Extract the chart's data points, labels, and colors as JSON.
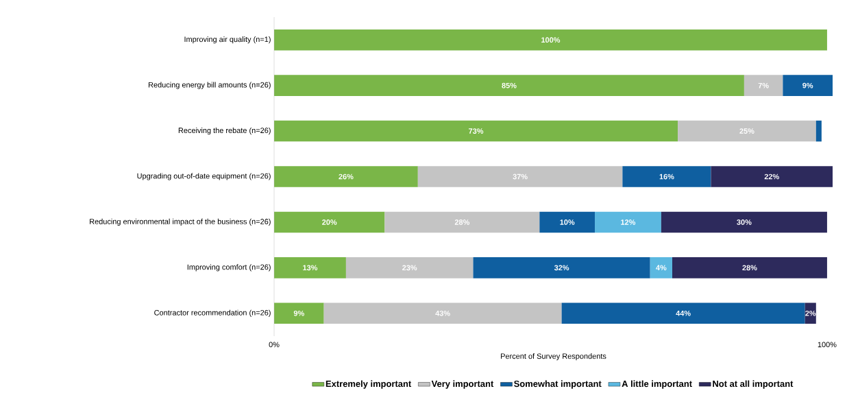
{
  "chart_data": {
    "type": "bar",
    "orientation": "horizontal",
    "stacked": true,
    "categories": [
      "Improving air quality (n=1)",
      "Reducing energy bill amounts (n=26)",
      "Receiving the rebate (n=26)",
      "Upgrading out-of-date equipment (n=26)",
      "Reducing environmental impact of the business (n=26)",
      "Improving comfort (n=26)",
      "Contractor recommendation (n=26)"
    ],
    "series": [
      {
        "name": "Extremely important",
        "color": "#7ab648",
        "values": [
          100,
          85,
          73,
          26,
          20,
          13,
          9
        ],
        "value_labels": [
          "100%",
          "85%",
          "73%",
          "26%",
          "20%",
          "13%",
          "9%"
        ]
      },
      {
        "name": "Very important",
        "color": "#c4c4c4",
        "values": [
          null,
          7,
          25,
          37,
          28,
          23,
          43
        ],
        "value_labels": [
          null,
          "7%",
          "25%",
          "37%",
          "28%",
          "23%",
          "43%"
        ]
      },
      {
        "name": "Somewhat important",
        "color": "#0f5fa0",
        "values": [
          null,
          9,
          1,
          16,
          10,
          32,
          44
        ],
        "value_labels": [
          null,
          "9%",
          null,
          "16%",
          "10%",
          "32%",
          "44%"
        ]
      },
      {
        "name": "A little important",
        "color": "#5bb8e0",
        "values": [
          null,
          null,
          null,
          null,
          12,
          4,
          null
        ],
        "value_labels": [
          null,
          null,
          null,
          null,
          "12%",
          "4%",
          null
        ]
      },
      {
        "name": "Not at all important",
        "color": "#2d2a5c",
        "values": [
          null,
          null,
          null,
          22,
          30,
          28,
          2
        ],
        "value_labels": [
          null,
          null,
          null,
          "22%",
          "30%",
          "28%",
          "2%"
        ]
      }
    ],
    "xlim": [
      0,
      101
    ],
    "xticks": [
      {
        "value": 0,
        "label": "0%"
      },
      {
        "value": 100,
        "label": "100%"
      }
    ],
    "xlabel": "Percent of Survey Respondents",
    "legend": "bottom"
  }
}
